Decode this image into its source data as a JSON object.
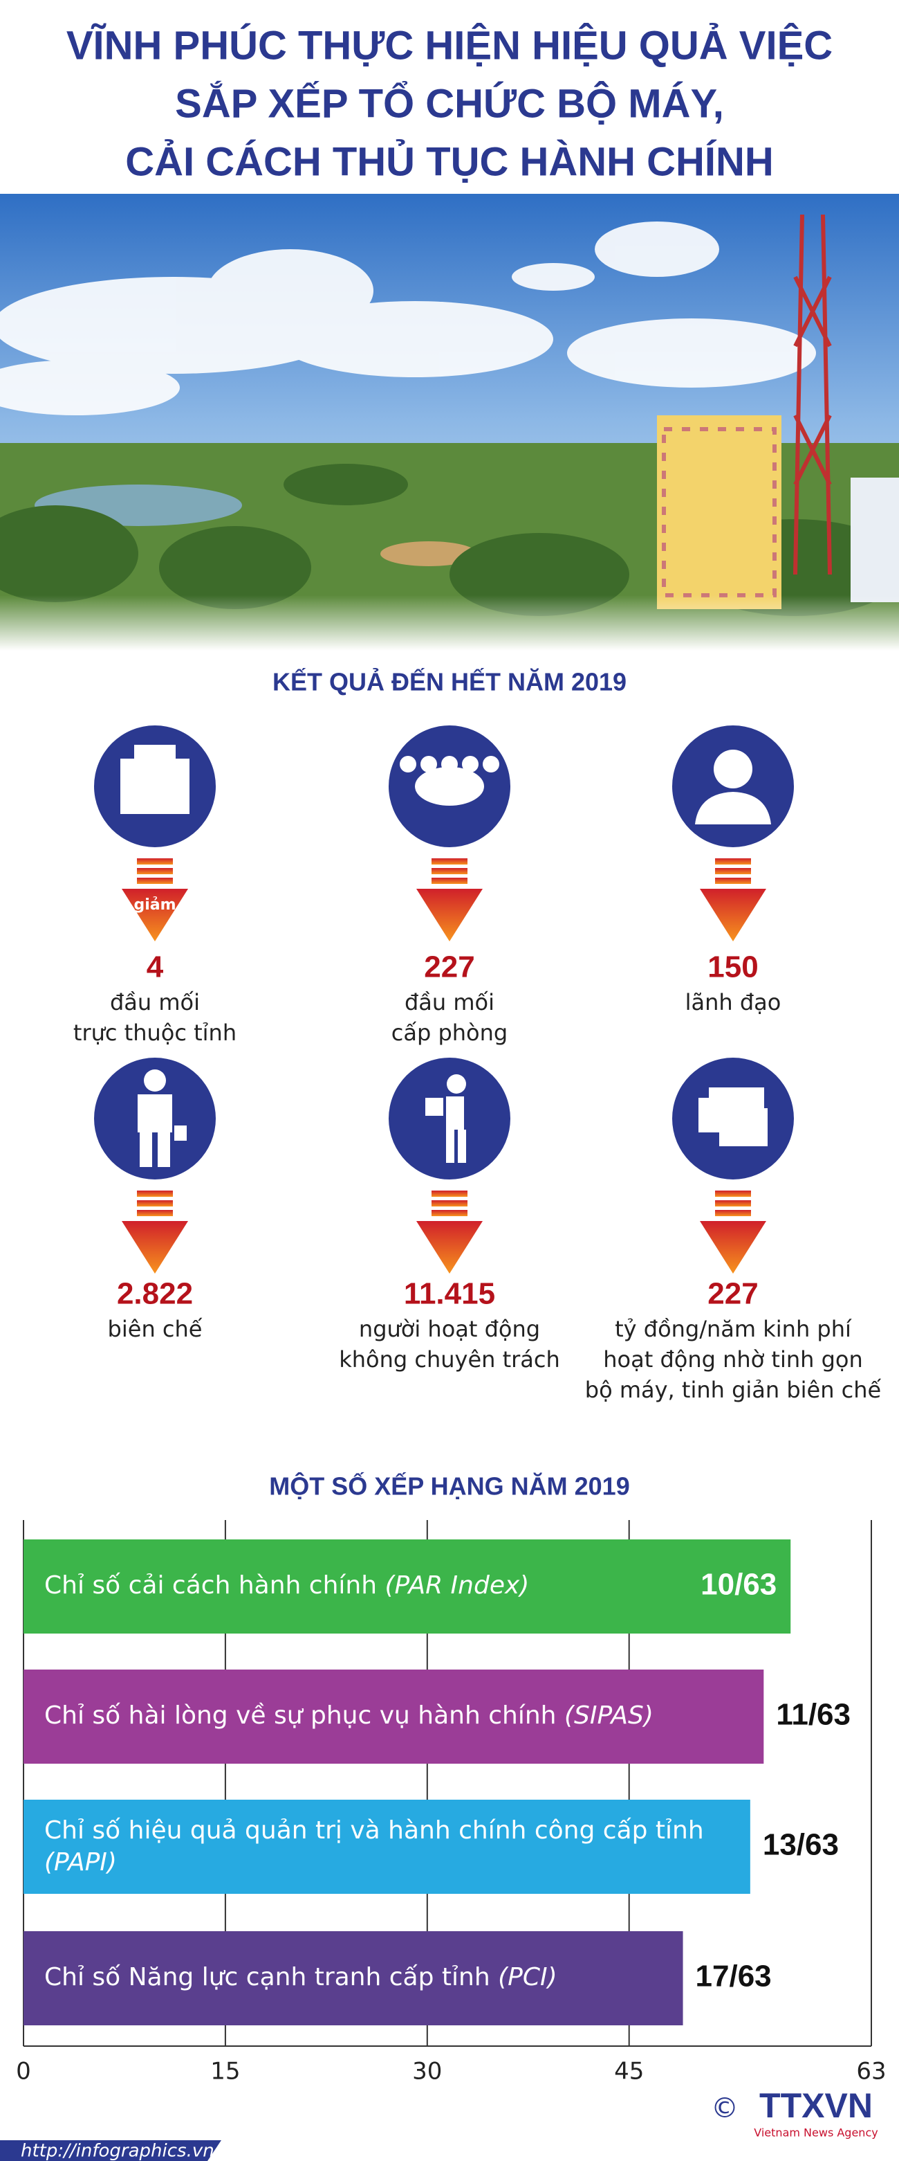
{
  "header": {
    "title": [
      "VĨNH PHÚC THỰC HIỆN HIỆU QUẢ VIỆC",
      "SẮP XẾP TỔ CHỨC BỘ MÁY,",
      "CẢI CÁCH THỦ TỤC HÀNH CHÍNH"
    ]
  },
  "results": {
    "heading": "KẾT QUẢ ĐẾN HẾT NĂM 2019",
    "arrow_label": "giảm",
    "stats": [
      {
        "value": "4",
        "label": [
          "đầu mối",
          "trực thuộc tỉnh"
        ]
      },
      {
        "value": "227",
        "label": [
          "đầu mối",
          "cấp phòng"
        ]
      },
      {
        "value": "150",
        "label": [
          "lãnh đạo"
        ]
      },
      {
        "value": "2.822",
        "label": [
          "biên chế"
        ]
      },
      {
        "value": "11.415",
        "label": [
          "người hoạt động",
          "không chuyên trách"
        ]
      },
      {
        "value": "227",
        "label": [
          "tỷ đồng/năm kinh phí",
          "hoạt động nhờ tinh gọn",
          "bộ máy, tinh giản biên chế"
        ]
      }
    ]
  },
  "chart_data": {
    "type": "bar",
    "orientation": "horizontal",
    "title": "MỘT SỐ XẾP HẠNG NĂM 2019",
    "categories": [
      "Chỉ số cải cách hành chính",
      "Chỉ số hài lòng về sự phục vụ hành chính",
      "Chỉ số hiệu quả quản trị và hành chính công cấp tỉnh",
      "Chỉ số Năng lực cạnh tranh cấp tỉnh"
    ],
    "category_notes": [
      "(PAR Index)",
      "(SIPAS)",
      "(PAPI)",
      "(PCI)"
    ],
    "values": [
      57,
      55,
      54,
      49
    ],
    "ranks": [
      "10/63",
      "11/63",
      "13/63",
      "17/63"
    ],
    "colors": [
      "#3cb54a",
      "#9b3d97",
      "#27aae1",
      "#5a3f8e"
    ],
    "xlim": [
      0,
      63
    ],
    "xticks": [
      0,
      15,
      30,
      45,
      63
    ],
    "grid": true
  },
  "footer": {
    "url": "http://infographics.vn",
    "copyright": "©",
    "logo": "TTXVN",
    "logo_sub": "Vietnam News Agency"
  }
}
